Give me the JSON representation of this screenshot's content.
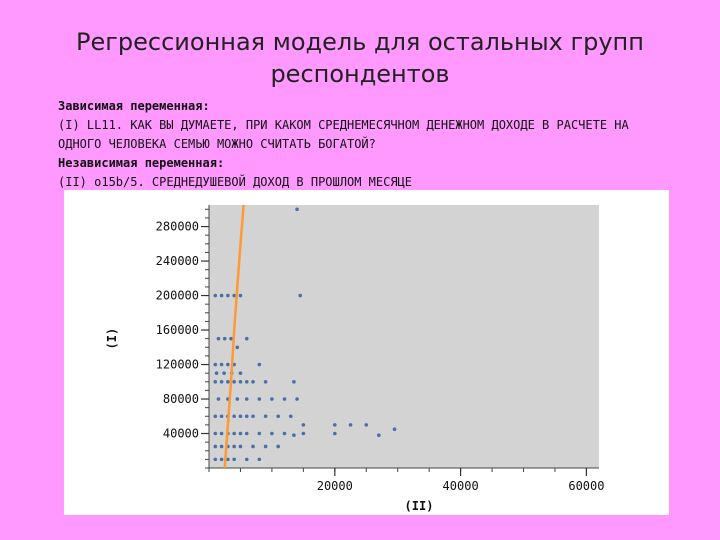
{
  "slide": {
    "title_line1": "Регрессионная модель для остальных групп",
    "title_line2": "респондентов"
  },
  "description": {
    "dep_label": "Зависимая переменная:",
    "dep_text_line1": "(I) LL11. КАК ВЫ ДУМАЕТЕ, ПРИ КАКОМ СРЕДНЕМЕСЯЧНОМ ДЕНЕЖНОМ ДОХОДЕ В РАСЧЕТЕ НА",
    "dep_text_line2": "ОДНОГО ЧЕЛОВЕКА СЕМЬЮ МОЖНО СЧИТАТЬ БОГАТОЙ?",
    "indep_label": "Независимая переменная:",
    "indep_text": "(II) o15b/5. СРЕДНЕДУШЕВОЙ ДОХОД В ПРОШЛОМ МЕСЯЦЕ"
  },
  "chart_data": {
    "type": "scatter",
    "xlabel": "(II)",
    "ylabel": "(I)",
    "xlim": [
      0,
      62000
    ],
    "ylim": [
      0,
      305000
    ],
    "xticks": [
      20000,
      40000,
      60000
    ],
    "yticks": [
      40000,
      80000,
      120000,
      160000,
      200000,
      240000,
      280000
    ],
    "grid": false,
    "colors": {
      "points": "#4a6ea8",
      "line": "#ff9933",
      "background": "#d3d3d3"
    },
    "regression_line": {
      "x": [
        2500,
        3000,
        3500,
        4000,
        4500,
        5000,
        5500
      ],
      "y": [
        0,
        50000,
        100000,
        160000,
        210000,
        260000,
        305000
      ]
    },
    "points": {
      "x": [
        1000,
        2000,
        3000,
        4000,
        5000,
        1500,
        2500,
        3500,
        4500,
        6000,
        14500,
        1000,
        2000,
        3000,
        4000,
        1200,
        2400,
        3600,
        5000,
        8000,
        1000,
        2000,
        3000,
        4000,
        5000,
        6000,
        7000,
        9000,
        13500,
        1500,
        3000,
        4500,
        6000,
        8000,
        10000,
        12000,
        14000,
        1000,
        2000,
        3000,
        4000,
        5000,
        6000,
        7000,
        9000,
        11000,
        13000,
        15000,
        20000,
        22500,
        25000,
        1000,
        2000,
        3000,
        4000,
        5000,
        6000,
        8000,
        10000,
        12000,
        15000,
        20000,
        1000,
        2000,
        3000,
        4000,
        5000,
        7000,
        9000,
        11000,
        1000,
        2000,
        3000,
        4000,
        6000,
        8000,
        14000,
        13500,
        27000,
        29500
      ],
      "y": [
        200000,
        200000,
        200000,
        200000,
        200000,
        150000,
        150000,
        150000,
        140000,
        150000,
        200000,
        120000,
        120000,
        120000,
        120000,
        110000,
        110000,
        110000,
        110000,
        120000,
        100000,
        100000,
        100000,
        100000,
        100000,
        100000,
        100000,
        100000,
        100000,
        80000,
        80000,
        80000,
        80000,
        80000,
        80000,
        80000,
        80000,
        60000,
        60000,
        60000,
        60000,
        60000,
        60000,
        60000,
        60000,
        60000,
        60000,
        50000,
        50000,
        50000,
        50000,
        40000,
        40000,
        40000,
        40000,
        40000,
        40000,
        40000,
        40000,
        40000,
        40000,
        40000,
        25000,
        25000,
        25000,
        25000,
        25000,
        25000,
        25000,
        25000,
        10000,
        10000,
        10000,
        10000,
        10000,
        10000,
        300000,
        38000,
        38000,
        45000
      ]
    }
  }
}
